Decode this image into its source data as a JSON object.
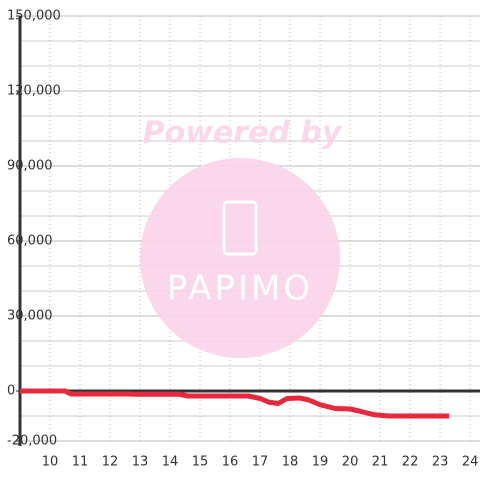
{
  "chart_data": {
    "type": "line",
    "x": [
      9,
      10.5,
      10.7,
      12.6,
      12.8,
      14.3,
      14.6,
      16.6,
      17,
      17.3,
      17.6,
      17.9,
      18.3,
      18.6,
      19,
      19.5,
      20,
      20.3,
      20.8,
      21.3,
      23.3
    ],
    "series": [
      {
        "color": "#e8283c",
        "values": [
          0,
          0,
          -1200,
          -1200,
          -1300,
          -1300,
          -2000,
          -2000,
          -3000,
          -4500,
          -5000,
          -3000,
          -2800,
          -3500,
          -5500,
          -7000,
          -7200,
          -8000,
          -9500,
          -10000,
          -10000
        ]
      }
    ],
    "xlim": [
      9,
      24.33
    ],
    "xticks": [
      10,
      11,
      12,
      13,
      14,
      15,
      16,
      17,
      18,
      19,
      20,
      21,
      22,
      23,
      24
    ],
    "ylim": [
      -20000,
      150000
    ],
    "yticks": [
      {
        "value": -20000,
        "label": "-20,000"
      },
      0,
      {
        "value": 30000,
        "label": "30,000"
      },
      {
        "value": 60000,
        "label": "60,000"
      },
      {
        "value": 90000,
        "label": "90,000"
      },
      {
        "value": 120000,
        "label": "120,000"
      },
      {
        "value": 150000,
        "label": "150,000"
      }
    ],
    "minor_yticks": [
      -10000,
      10000,
      20000,
      40000,
      50000,
      70000,
      80000,
      100000,
      110000,
      130000,
      140000
    ],
    "grid": true
  },
  "watermark": {
    "text": "Powered by",
    "logo": "PAPIMO"
  }
}
